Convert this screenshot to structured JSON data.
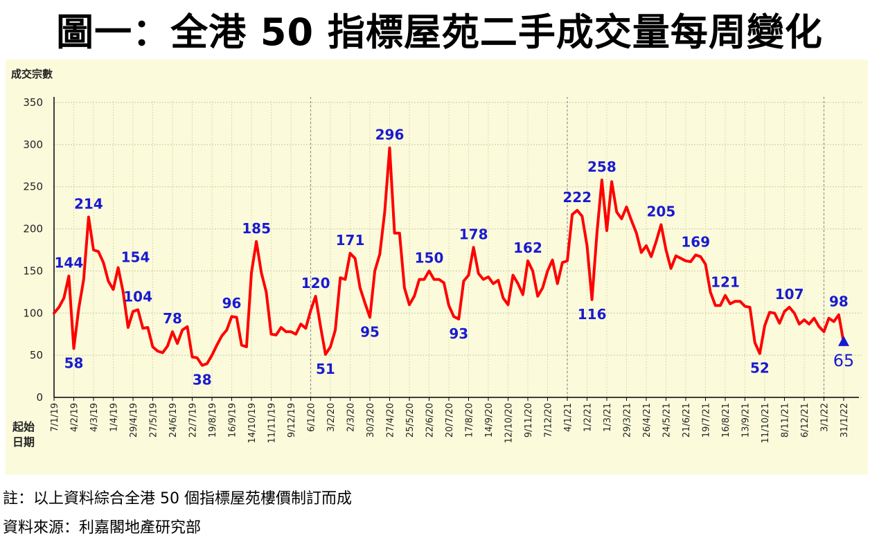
{
  "title": "圖一：全港 50 指標屋苑二手成交量每周變化",
  "footnote": "註：以上資料綜合全港 50 個指標屋苑樓價制訂而成",
  "source": "資料來源：利嘉閣地產研究部",
  "chart_data": {
    "type": "line",
    "title": "圖一：全港 50 指標屋苑二手成交量每周變化",
    "ylabel": "成交宗數",
    "xlabel_lines": [
      "起始",
      "日期"
    ],
    "ylim": [
      0,
      350
    ],
    "yticks": [
      0,
      50,
      100,
      150,
      200,
      250,
      300,
      350
    ],
    "grid": true,
    "line_color": "#ff0000",
    "label_color": "#1a1ad0",
    "background_color": "#fbfbdc",
    "x_tick_labels": [
      "7/1/19",
      "4/2/19",
      "4/3/19",
      "1/4/19",
      "29/4/19",
      "27/5/19",
      "24/6/19",
      "22/7/19",
      "19/8/19",
      "16/9/19",
      "14/10/19",
      "11/11/19",
      "9/12/19",
      "6/1/20",
      "3/2/20",
      "2/3/20",
      "30/3/20",
      "27/4/20",
      "25/5/20",
      "22/6/20",
      "20/7/20",
      "17/8/20",
      "14/9/20",
      "12/10/20",
      "9/11/20",
      "7/12/20",
      "4/1/21",
      "1/2/21",
      "1/3/21",
      "29/3/21",
      "26/4/21",
      "24/5/21",
      "21/6/21",
      "19/7/21",
      "16/8/21",
      "13/9/21",
      "11/10/21",
      "8/11/21",
      "6/12/21",
      "3/1/22",
      "31/1/22"
    ],
    "year_dividers": [
      "6/1/20",
      "4/1/21",
      "3/1/22"
    ],
    "series": [
      {
        "values": [
          100,
          107,
          118,
          144,
          58,
          105,
          140,
          214,
          175,
          173,
          160,
          138,
          128,
          154,
          125,
          83,
          102,
          104,
          82,
          83,
          60,
          55,
          53,
          61,
          78,
          64,
          80,
          84,
          48,
          47,
          38,
          40,
          50,
          62,
          73,
          80,
          96,
          95,
          62,
          60,
          148,
          185,
          148,
          125,
          75,
          74,
          83,
          78,
          78,
          75,
          87,
          82,
          103,
          120,
          84,
          51,
          60,
          80,
          142,
          140,
          171,
          165,
          130,
          112,
          95,
          150,
          170,
          220,
          296,
          195,
          195,
          130,
          110,
          120,
          140,
          140,
          150,
          140,
          140,
          136,
          109,
          96,
          93,
          138,
          145,
          178,
          147,
          140,
          143,
          135,
          139,
          118,
          110,
          145,
          135,
          122,
          162,
          150,
          120,
          130,
          150,
          163,
          135,
          160,
          162,
          217,
          222,
          215,
          180,
          116,
          195,
          258,
          198,
          256,
          220,
          212,
          226,
          210,
          195,
          172,
          180,
          167,
          185,
          205,
          175,
          153,
          168,
          165,
          162,
          161,
          169,
          167,
          158,
          125,
          109,
          109,
          121,
          111,
          114,
          114,
          108,
          107,
          65,
          52,
          85,
          101,
          100,
          88,
          102,
          107,
          100,
          87,
          92,
          87,
          94,
          84,
          78,
          94,
          90,
          98,
          65
        ],
        "labels": [
          {
            "index": 3,
            "value": 144,
            "pos": "above"
          },
          {
            "index": 4,
            "value": 58,
            "pos": "below"
          },
          {
            "index": 7,
            "value": 214,
            "pos": "above"
          },
          {
            "index": 13,
            "value": 154,
            "pos": "right"
          },
          {
            "index": 17,
            "value": 104,
            "pos": "above"
          },
          {
            "index": 24,
            "value": 78,
            "pos": "above"
          },
          {
            "index": 30,
            "value": 38,
            "pos": "below"
          },
          {
            "index": 36,
            "value": 96,
            "pos": "above"
          },
          {
            "index": 41,
            "value": 185,
            "pos": "above"
          },
          {
            "index": 53,
            "value": 120,
            "pos": "above"
          },
          {
            "index": 55,
            "value": 51,
            "pos": "below"
          },
          {
            "index": 60,
            "value": 171,
            "pos": "above"
          },
          {
            "index": 64,
            "value": 95,
            "pos": "below"
          },
          {
            "index": 68,
            "value": 296,
            "pos": "above"
          },
          {
            "index": 76,
            "value": 150,
            "pos": "above"
          },
          {
            "index": 82,
            "value": 93,
            "pos": "below"
          },
          {
            "index": 85,
            "value": 178,
            "pos": "above"
          },
          {
            "index": 96,
            "value": 162,
            "pos": "above"
          },
          {
            "index": 106,
            "value": 222,
            "pos": "above"
          },
          {
            "index": 109,
            "value": 116,
            "pos": "below"
          },
          {
            "index": 111,
            "value": 258,
            "pos": "above"
          },
          {
            "index": 123,
            "value": 205,
            "pos": "above"
          },
          {
            "index": 130,
            "value": 169,
            "pos": "above"
          },
          {
            "index": 136,
            "value": 121,
            "pos": "above"
          },
          {
            "index": 143,
            "value": 52,
            "pos": "below"
          },
          {
            "index": 149,
            "value": 107,
            "pos": "above"
          },
          {
            "index": 159,
            "value": 98,
            "pos": "above"
          },
          {
            "index": 160,
            "value": 65,
            "pos": "below"
          }
        ],
        "last_marker": "triangle-up"
      }
    ]
  }
}
